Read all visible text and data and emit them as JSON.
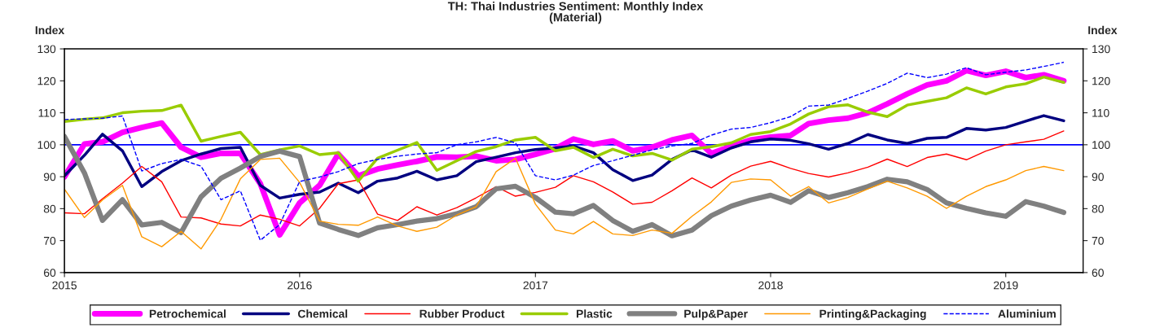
{
  "chart_data": {
    "type": "line",
    "title": "TH: Thai Industries Sentiment: Monthly Index\n(Material)",
    "ylabel": "Index",
    "y2label": "Index",
    "x": [
      "2015-01",
      "2015-02",
      "2015-03",
      "2015-04",
      "2015-05",
      "2015-06",
      "2015-07",
      "2015-08",
      "2015-09",
      "2015-10",
      "2015-11",
      "2015-12",
      "2016-01",
      "2016-02",
      "2016-03",
      "2016-04",
      "2016-05",
      "2016-06",
      "2016-07",
      "2016-08",
      "2016-09",
      "2016-10",
      "2016-11",
      "2016-12",
      "2017-01",
      "2017-02",
      "2017-03",
      "2017-04",
      "2017-05",
      "2017-06",
      "2017-07",
      "2017-08",
      "2017-09",
      "2017-10",
      "2017-11",
      "2017-12",
      "2018-01",
      "2018-02",
      "2018-03",
      "2018-04",
      "2018-05",
      "2018-06",
      "2018-07",
      "2018-08",
      "2018-09",
      "2018-10",
      "2018-11",
      "2018-12",
      "2019-01",
      "2019-02",
      "2019-03",
      "2019-04"
    ],
    "series": [
      {
        "name": "Petrochemical",
        "color": "#ff00ff",
        "values": [
          90.0,
          100.2,
          100.9,
          103.9,
          105.4,
          106.8,
          99.2,
          96.1,
          97.3,
          97.3,
          87.8,
          71.8,
          81.8,
          87.3,
          97.1,
          90.3,
          92.4,
          93.7,
          94.8,
          96.2,
          96.1,
          96.4,
          95.0,
          95.4,
          97.0,
          98.8,
          101.8,
          100.1,
          101.2,
          98.1,
          99.2,
          101.5,
          102.9,
          97.3,
          99.5,
          101.5,
          102.4,
          102.9,
          106.6,
          107.7,
          108.3,
          110.0,
          112.8,
          115.9,
          118.7,
          120.0,
          123.2,
          121.7,
          123.0,
          121.0,
          121.9,
          120.0
        ]
      },
      {
        "name": "Chemical",
        "color": "#000080",
        "values": [
          90.3,
          96.7,
          103.3,
          98.1,
          86.9,
          91.6,
          95.0,
          97.1,
          98.8,
          99.2,
          87.3,
          83.3,
          84.5,
          85.2,
          88.0,
          85.0,
          88.6,
          89.6,
          91.7,
          89.0,
          90.3,
          94.7,
          96.1,
          97.5,
          98.5,
          99.0,
          99.6,
          97.5,
          92.2,
          88.8,
          90.5,
          95.4,
          98.4,
          96.1,
          99.0,
          100.9,
          101.8,
          101.4,
          100.3,
          98.6,
          100.4,
          103.2,
          101.5,
          100.4,
          102.0,
          102.3,
          105.1,
          104.6,
          105.4,
          107.4,
          109.1,
          107.5
        ]
      },
      {
        "name": "Rubber Product",
        "color": "#ff0000",
        "values": [
          78.7,
          78.4,
          83.1,
          88.0,
          93.2,
          88.4,
          77.4,
          77.1,
          75.2,
          74.6,
          78.0,
          76.7,
          74.6,
          80.1,
          87.8,
          89.0,
          78.3,
          76.3,
          80.6,
          78.0,
          80.3,
          83.4,
          86.9,
          83.9,
          85.1,
          86.7,
          90.3,
          88.4,
          85.2,
          81.4,
          82.0,
          85.6,
          89.6,
          86.5,
          90.5,
          93.3,
          94.8,
          92.6,
          91.0,
          89.9,
          91.2,
          93.0,
          95.5,
          93.2,
          96.0,
          97.1,
          95.3,
          98.0,
          100.0,
          100.9,
          101.7,
          104.3
        ]
      },
      {
        "name": "Plastic",
        "color": "#99cc00",
        "values": [
          107.3,
          108.0,
          108.4,
          110.0,
          110.5,
          110.7,
          112.4,
          101.1,
          102.6,
          103.9,
          96.9,
          98.4,
          99.6,
          96.9,
          97.5,
          88.6,
          95.8,
          98.3,
          100.7,
          92.0,
          95.0,
          97.9,
          99.4,
          101.5,
          102.3,
          98.1,
          99.2,
          96.0,
          98.6,
          96.5,
          97.3,
          95.2,
          98.6,
          99.4,
          100.6,
          103.2,
          104.1,
          106.5,
          109.6,
          111.9,
          112.5,
          110.2,
          108.8,
          112.4,
          113.6,
          114.7,
          117.8,
          115.9,
          118.1,
          119.1,
          121.2,
          119.5
        ]
      },
      {
        "name": "Pulp&Paper",
        "color": "#808080",
        "values": [
          102.6,
          91.2,
          76.3,
          82.8,
          74.9,
          75.7,
          72.5,
          83.7,
          89.5,
          92.7,
          96.3,
          98.0,
          96.3,
          75.5,
          73.5,
          71.6,
          74.0,
          75.0,
          76.1,
          76.9,
          78.4,
          80.6,
          86.2,
          87.0,
          83.5,
          78.9,
          78.4,
          81.0,
          76.3,
          72.9,
          75.0,
          71.5,
          73.3,
          77.8,
          80.8,
          82.7,
          84.2,
          82.0,
          85.6,
          83.5,
          85.0,
          86.9,
          89.2,
          88.4,
          86.0,
          81.8,
          80.1,
          78.7,
          77.6,
          82.2,
          80.8,
          78.8
        ]
      },
      {
        "name": "Printing&Packaging",
        "color": "#ff9900",
        "values": [
          86.1,
          77.2,
          82.7,
          87.3,
          71.2,
          68.1,
          72.9,
          67.4,
          76.7,
          89.3,
          95.4,
          95.8,
          88.2,
          76.1,
          75.1,
          74.8,
          77.4,
          74.6,
          72.9,
          74.2,
          78.0,
          80.6,
          91.6,
          95.8,
          81.4,
          73.3,
          72.1,
          76.0,
          72.1,
          71.6,
          73.3,
          72.3,
          77.6,
          82.1,
          88.2,
          89.3,
          89.0,
          83.9,
          86.9,
          81.8,
          83.5,
          86.2,
          88.6,
          86.5,
          83.9,
          80.1,
          83.9,
          86.9,
          89.0,
          91.9,
          93.2,
          91.9
        ]
      },
      {
        "name": "Aluminium",
        "color": "#0000ff",
        "line_style": "dashed",
        "values": [
          107.9,
          108.1,
          108.3,
          109.0,
          91.8,
          94.1,
          95.4,
          93.3,
          82.8,
          85.6,
          70.1,
          75.0,
          88.5,
          89.9,
          91.6,
          94.1,
          95.4,
          96.4,
          97.1,
          97.5,
          100.0,
          100.9,
          102.3,
          100.6,
          90.3,
          89.0,
          90.5,
          93.5,
          95.0,
          96.7,
          98.4,
          99.6,
          100.4,
          103.0,
          104.9,
          105.4,
          106.9,
          108.8,
          112.1,
          112.4,
          114.5,
          116.8,
          119.2,
          122.4,
          121.0,
          122.1,
          124.1,
          121.9,
          122.7,
          123.4,
          124.5,
          125.8
        ]
      }
    ],
    "xlim": [
      "2015-01",
      "2019-05"
    ],
    "xticks": [
      {
        "value": "2015-01",
        "label": "2015"
      },
      {
        "value": "2016-01",
        "label": "2016"
      },
      {
        "value": "2017-01",
        "label": "2017"
      },
      {
        "value": "2018-01",
        "label": "2018"
      },
      {
        "value": "2019-01",
        "label": "2019"
      }
    ],
    "ylim": [
      60,
      130
    ],
    "yticks": [
      60,
      70,
      80,
      90,
      100,
      110,
      120,
      130
    ],
    "y2lim": [
      60,
      130
    ],
    "y2ticks": [
      60,
      70,
      80,
      90,
      100,
      110,
      120,
      130
    ],
    "ref_lines": [
      {
        "axis": "y",
        "value": 100,
        "color": "#0000ff",
        "line_style": "solid"
      }
    ],
    "grid": false,
    "legend": "bottom",
    "marker": "none",
    "line_style": "solid"
  }
}
